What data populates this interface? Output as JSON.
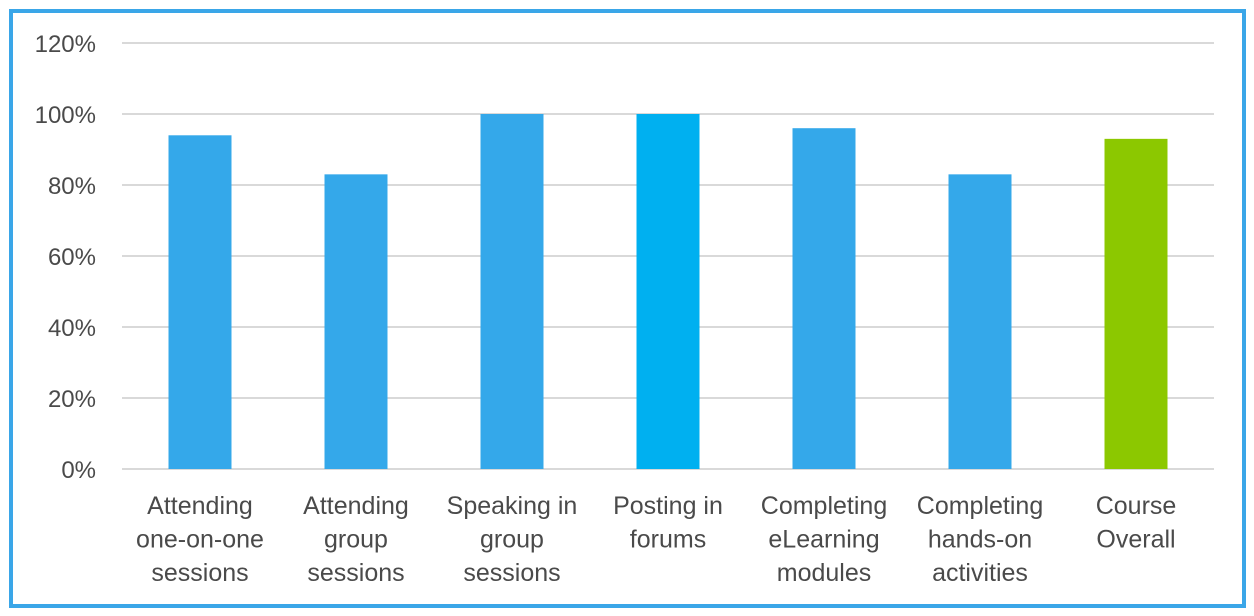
{
  "chart_data": {
    "type": "bar",
    "categories": [
      [
        "Attending",
        "one-on-one",
        "sessions"
      ],
      [
        "Attending",
        "group",
        "sessions"
      ],
      [
        "Speaking in",
        "group",
        "sessions"
      ],
      [
        "Posting in",
        "forums"
      ],
      [
        "Completing",
        "eLearning",
        "modules"
      ],
      [
        "Completing",
        "hands-on",
        "activities"
      ],
      [
        "Course",
        "Overall"
      ]
    ],
    "values": [
      94,
      83,
      100,
      100,
      96,
      83,
      93
    ],
    "bar_colors": [
      "#34a8ea",
      "#34a8ea",
      "#34a8ea",
      "#00b0f0",
      "#34a8ea",
      "#34a8ea",
      "#8cc800"
    ],
    "ylim": [
      0,
      120
    ],
    "yticks": [
      "0%",
      "20%",
      "40%",
      "60%",
      "80%",
      "100%",
      "120%"
    ],
    "grid": true,
    "gridline_color": "#d9d9d9",
    "frame_color": "#3aa6e8",
    "title": "",
    "xlabel": "",
    "ylabel": ""
  }
}
